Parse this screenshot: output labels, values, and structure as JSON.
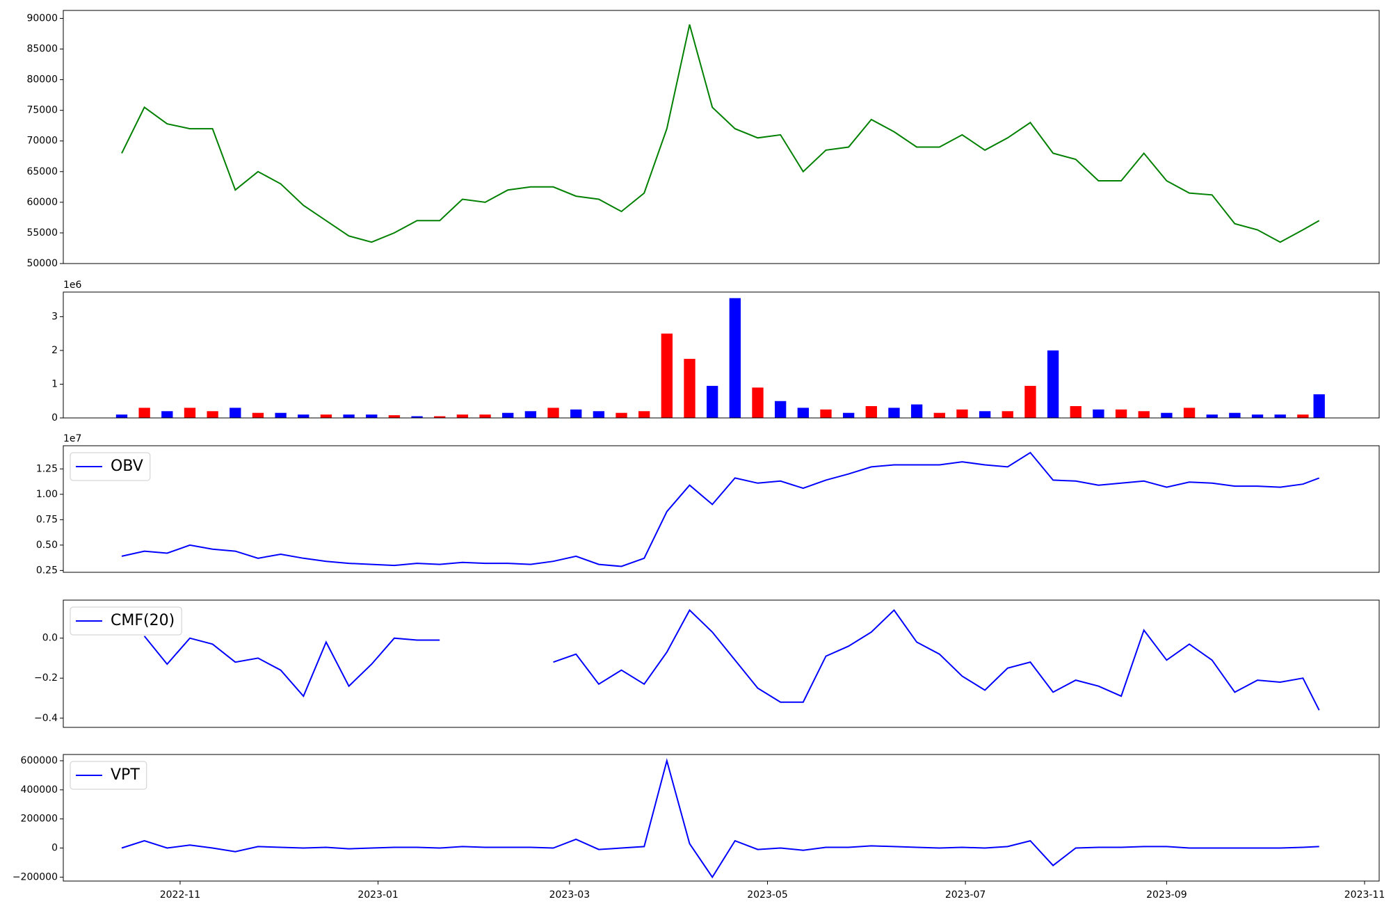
{
  "chart_data": [
    {
      "type": "line",
      "color": "#008000",
      "x": [
        -18,
        -11,
        -4,
        3,
        10,
        17,
        24,
        31,
        38,
        45,
        52,
        59,
        66,
        73,
        80,
        87,
        94,
        101,
        108,
        115,
        122,
        129,
        136,
        143,
        150,
        157,
        164,
        171,
        178,
        185,
        192,
        199,
        206,
        213,
        220,
        227,
        234,
        241,
        248,
        255,
        262,
        269,
        276,
        283,
        290,
        297,
        304,
        311,
        318,
        325,
        332,
        339,
        346,
        351
      ],
      "values": [
        68000,
        75500,
        72800,
        72000,
        72000,
        62000,
        65000,
        63000,
        59500,
        57000,
        54500,
        53500,
        55000,
        57000,
        57000,
        60500,
        60000,
        62000,
        62500,
        62500,
        61000,
        60500,
        58500,
        61500,
        72000,
        89000,
        75500,
        72000,
        70500,
        71000,
        65000,
        68500,
        69000,
        73500,
        71500,
        69000,
        69000,
        71000,
        68500,
        70500,
        73000,
        68000,
        67000,
        63500,
        63500,
        68000,
        63500,
        61500,
        61200,
        56500,
        55500,
        53500,
        55500,
        57000
      ],
      "xlim": [
        -36,
        369.5
      ],
      "ylim": [
        50000,
        91300
      ],
      "yticks": [
        50000,
        55000,
        60000,
        65000,
        70000,
        75000,
        80000,
        85000,
        90000
      ]
    },
    {
      "type": "bar",
      "x": [
        -18,
        -11,
        -4,
        3,
        10,
        17,
        24,
        31,
        38,
        45,
        52,
        59,
        66,
        73,
        80,
        87,
        94,
        101,
        108,
        115,
        122,
        129,
        136,
        143,
        150,
        157,
        164,
        171,
        178,
        185,
        192,
        199,
        206,
        213,
        220,
        227,
        234,
        241,
        248,
        255,
        262,
        269,
        276,
        283,
        290,
        297,
        304,
        311,
        318,
        325,
        332,
        339,
        346,
        351
      ],
      "values": [
        100000,
        300000,
        200000,
        300000,
        200000,
        300000,
        150000,
        150000,
        100000,
        100000,
        100000,
        100000,
        80000,
        50000,
        50000,
        100000,
        100000,
        150000,
        200000,
        300000,
        250000,
        200000,
        150000,
        200000,
        2500000,
        1750000,
        950000,
        3550000,
        900000,
        500000,
        300000,
        250000,
        150000,
        350000,
        300000,
        400000,
        150000,
        250000,
        200000,
        200000,
        950000,
        2000000,
        350000,
        250000,
        250000,
        200000,
        150000,
        300000,
        100000,
        150000,
        100000,
        100000,
        100000,
        700000
      ],
      "colors": [
        "blue",
        "red",
        "blue",
        "red",
        "red",
        "blue",
        "red",
        "blue",
        "blue",
        "red",
        "blue",
        "blue",
        "red",
        "blue",
        "red",
        "red",
        "red",
        "blue",
        "blue",
        "red",
        "blue",
        "blue",
        "red",
        "red",
        "red",
        "red",
        "blue",
        "blue",
        "red",
        "blue",
        "blue",
        "red",
        "blue",
        "red",
        "blue",
        "blue",
        "red",
        "red",
        "blue",
        "red",
        "red",
        "blue",
        "red",
        "blue",
        "red",
        "red",
        "blue",
        "red",
        "blue",
        "blue",
        "blue",
        "blue",
        "red",
        "blue"
      ],
      "xlim": [
        -36,
        369.5
      ],
      "ylim": [
        0,
        3730000
      ],
      "y_offset": "1e6",
      "yticks": [
        {
          "value": 0,
          "label": "0"
        },
        {
          "value": 1000000,
          "label": "1"
        },
        {
          "value": 2000000,
          "label": "2"
        },
        {
          "value": 3000000,
          "label": "3"
        }
      ]
    },
    {
      "type": "line",
      "legend": "upper left",
      "x": [
        -18,
        -11,
        -4,
        3,
        10,
        17,
        24,
        31,
        38,
        45,
        52,
        59,
        66,
        73,
        80,
        87,
        94,
        101,
        108,
        115,
        122,
        129,
        136,
        143,
        150,
        157,
        164,
        171,
        178,
        185,
        192,
        199,
        206,
        213,
        220,
        227,
        234,
        241,
        248,
        255,
        262,
        269,
        276,
        283,
        290,
        297,
        304,
        311,
        318,
        325,
        332,
        339,
        346,
        351
      ],
      "series": [
        {
          "name": "OBV",
          "color": "#0000ff",
          "values": [
            3900000,
            4400000,
            4200000,
            5000000,
            4600000,
            4400000,
            3700000,
            4100000,
            3700000,
            3400000,
            3200000,
            3100000,
            3000000,
            3200000,
            3100000,
            3300000,
            3200000,
            3200000,
            3100000,
            3400000,
            3900000,
            3100000,
            2900000,
            3700000,
            8300000,
            10900000,
            9000000,
            11600000,
            11100000,
            11300000,
            10600000,
            11400000,
            12000000,
            12700000,
            12900000,
            12900000,
            12900000,
            13200000,
            12900000,
            12700000,
            14100000,
            11400000,
            11300000,
            10900000,
            11100000,
            11300000,
            10700000,
            11200000,
            11100000,
            10800000,
            10800000,
            10700000,
            11000000,
            11600000
          ]
        }
      ],
      "xlim": [
        -36,
        369.5
      ],
      "ylim": [
        2320000,
        14780000
      ],
      "y_offset": "1e7",
      "yticks": [
        {
          "value": 2500000,
          "label": "0.25"
        },
        {
          "value": 5000000,
          "label": "0.50"
        },
        {
          "value": 7500000,
          "label": "0.75"
        },
        {
          "value": 10000000,
          "label": "1.00"
        },
        {
          "value": 12500000,
          "label": "1.25"
        }
      ]
    },
    {
      "type": "line",
      "legend": "upper left",
      "x": [
        -18,
        -11,
        -4,
        3,
        10,
        17,
        24,
        31,
        38,
        45,
        52,
        59,
        66,
        73,
        80,
        87,
        94,
        101,
        108,
        115,
        122,
        129,
        136,
        143,
        150,
        157,
        164,
        171,
        178,
        185,
        192,
        199,
        206,
        213,
        220,
        227,
        234,
        241,
        248,
        255,
        262,
        269,
        276,
        283,
        290,
        297,
        304,
        311,
        318,
        325,
        332,
        339,
        346,
        351
      ],
      "series": [
        {
          "name": "CMF(20)",
          "color": "#0000ff",
          "values": [
            null,
            0.01,
            -0.13,
            0,
            -0.03,
            -0.12,
            -0.1,
            -0.16,
            -0.29,
            -0.02,
            -0.24,
            -0.13,
            0,
            -0.01,
            -0.01,
            null,
            null,
            null,
            null,
            -0.12,
            -0.08,
            -0.23,
            -0.16,
            -0.23,
            -0.07,
            0.14,
            0.03,
            -0.11,
            -0.25,
            -0.32,
            -0.32,
            -0.09,
            -0.04,
            0.03,
            0.14,
            -0.02,
            -0.08,
            -0.19,
            -0.26,
            -0.15,
            -0.12,
            -0.27,
            -0.21,
            -0.24,
            -0.29,
            0.04,
            -0.11,
            -0.03,
            -0.11,
            -0.27,
            -0.21,
            -0.22,
            -0.2,
            -0.36
          ]
        }
      ],
      "xlim": [
        -36,
        369.5
      ],
      "ylim": [
        -0.446,
        0.19
      ],
      "yticks": [
        {
          "value": -0.4,
          "label": "−0.4"
        },
        {
          "value": -0.2,
          "label": "−0.2"
        },
        {
          "value": 0,
          "label": "0.0"
        }
      ]
    },
    {
      "type": "line",
      "legend": "upper left",
      "x": [
        -18,
        -11,
        -4,
        3,
        10,
        17,
        24,
        31,
        38,
        45,
        52,
        59,
        66,
        73,
        80,
        87,
        94,
        101,
        108,
        115,
        122,
        129,
        136,
        143,
        150,
        157,
        164,
        171,
        178,
        185,
        192,
        199,
        206,
        213,
        220,
        227,
        234,
        241,
        248,
        255,
        262,
        269,
        276,
        283,
        290,
        297,
        304,
        311,
        318,
        325,
        332,
        339,
        346,
        351
      ],
      "series": [
        {
          "name": "VPT",
          "color": "#0000ff",
          "values": [
            0,
            50000,
            0,
            20000,
            0,
            -25000,
            10000,
            5000,
            0,
            5000,
            -5000,
            0,
            5000,
            5000,
            0,
            10000,
            5000,
            5000,
            5000,
            0,
            60000,
            -10000,
            0,
            10000,
            600000,
            30000,
            -200000,
            50000,
            -10000,
            0,
            -15000,
            5000,
            5000,
            15000,
            10000,
            5000,
            0,
            5000,
            0,
            10000,
            50000,
            -120000,
            0,
            5000,
            5000,
            10000,
            10000,
            0,
            0,
            0,
            0,
            0,
            5000,
            10000
          ]
        }
      ],
      "xlim": [
        -36,
        369.5
      ],
      "ylim": [
        -227000,
        643000
      ],
      "yticks": [
        {
          "value": -200000,
          "label": "−200000"
        },
        0,
        200000,
        400000,
        600000
      ],
      "xticks": [
        {
          "value": 0,
          "label": "2022-11"
        },
        {
          "value": 61,
          "label": "2023-01"
        },
        {
          "value": 120,
          "label": "2023-03"
        },
        {
          "value": 181,
          "label": "2023-05"
        },
        {
          "value": 242,
          "label": "2023-07"
        },
        {
          "value": 304,
          "label": "2023-09"
        },
        {
          "value": 365,
          "label": "2023-11"
        }
      ]
    }
  ]
}
